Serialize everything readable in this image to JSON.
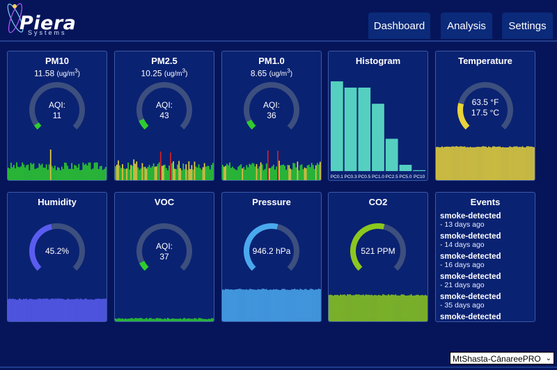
{
  "brand": {
    "name": "Piera",
    "sub": "Systems"
  },
  "nav": {
    "dashboard": "Dashboard",
    "analysis": "Analysis",
    "settings": "Settings"
  },
  "colors": {
    "background": "#06155a",
    "card": "#0a2272",
    "green": "#2ecc2e",
    "yellow": "#e8d33a",
    "red": "#d42020",
    "teal": "#55d0c0",
    "purple": "#5a5cf0",
    "blue": "#4aa9ee",
    "lime": "#8cc81e"
  },
  "cards": {
    "pm10": {
      "title": "PM10",
      "value": "11.58",
      "unit": "(ug/m",
      "sup": "3",
      "unit_close": ")",
      "aqi_label": "AQI:",
      "aqi": "11",
      "fraction": 0.04
    },
    "pm25": {
      "title": "PM2.5",
      "value": "10.25",
      "unit": "(ug/m",
      "sup": "3",
      "unit_close": ")",
      "aqi_label": "AQI:",
      "aqi": "43",
      "fraction": 0.08
    },
    "pm10b": {
      "title": "PM1.0",
      "value": "8.65",
      "unit": "(ug/m",
      "sup": "3",
      "unit_close": ")",
      "aqi_label": "AQI:",
      "aqi": "36",
      "fraction": 0.07
    },
    "histogram": {
      "title": "Histogram"
    },
    "temperature": {
      "title": "Temperature",
      "f": "63.5 °F",
      "c": "17.5 °C",
      "fraction": 0.22
    },
    "humidity": {
      "title": "Humidity",
      "value": "45.2%",
      "fraction": 0.452
    },
    "voc": {
      "title": "VOC",
      "aqi_label": "AQI:",
      "aqi": "37",
      "fraction": 0.07
    },
    "pressure": {
      "title": "Pressure",
      "value": "946.2 hPa",
      "fraction": 0.55
    },
    "co2": {
      "title": "CO2",
      "value": "521 PPM",
      "fraction": 0.55
    },
    "events": {
      "title": "Events",
      "items": [
        {
          "name": "smoke-detected",
          "time": "- 13 days ago"
        },
        {
          "name": "smoke-detected",
          "time": "- 14 days ago"
        },
        {
          "name": "smoke-detected",
          "time": "- 16 days ago"
        },
        {
          "name": "smoke-detected",
          "time": "- 21 days ago"
        },
        {
          "name": "smoke-detected",
          "time": "- 35 days ago"
        },
        {
          "name": "smoke-detected",
          "time": ""
        }
      ]
    }
  },
  "chart_data": {
    "type": "bar",
    "title": "Histogram",
    "categories": [
      "PC0.1",
      "PC0.3",
      "PC0.5",
      "PC1.0",
      "PC2.5",
      "PC5.0",
      "PC10"
    ],
    "values": [
      100,
      93,
      93,
      75,
      36,
      7,
      1
    ],
    "ylim": [
      0,
      110
    ]
  },
  "device_select": {
    "value": "MtShasta-CānareePRO"
  }
}
